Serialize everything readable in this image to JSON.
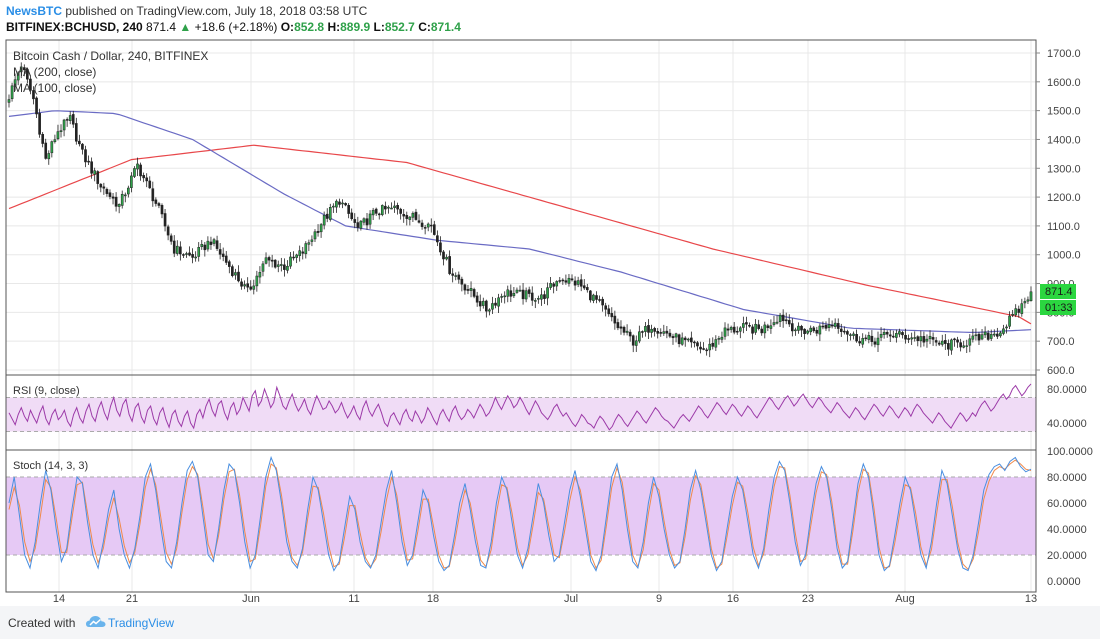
{
  "header": {
    "brand": "NewsBTC",
    "published_text": "published on TradingView.com, July 18, 2018 03:58 UTC",
    "symbol": "BITFINEX:BCHUSD, 240",
    "last": "871.4",
    "change": "+18.6 (+2.18%)",
    "o_label": "O:",
    "o_value": "852.8",
    "h_label": "H:",
    "h_value": "889.9",
    "l_label": "L:",
    "l_value": "852.7",
    "c_label": "C:",
    "c_value": "871.4"
  },
  "footer": {
    "created_with": "Created with",
    "platform": "TradingView"
  },
  "colors": {
    "up": "#2fa14a",
    "down": "#222222",
    "ma200": "#e8474a",
    "ma100": "#6a6bc4",
    "rsi": "#9c3aa8",
    "stoch_k": "#4a8fe0",
    "stoch_d": "#f08a4b",
    "rsi_band": "#f0dcf6",
    "stoch_band": "#e6c9f5",
    "grid": "#e8e8e8"
  },
  "chart_data": [
    {
      "type": "candlestick",
      "title": "Bitcoin Cash / Dollar, 240, BITFINEX",
      "legend": [
        "MA (200, close)",
        "MA (100, close)"
      ],
      "x_tick_labels": [
        "14",
        "21",
        "Jun",
        "11",
        "18",
        "Jul",
        "9",
        "16",
        "23",
        "Aug",
        "13"
      ],
      "y_tick_labels": [
        "1700.0",
        "1600.0",
        "1500.0",
        "1400.0",
        "1300.0",
        "1200.0",
        "1100.0",
        "1000.0",
        "900.0",
        "800.0",
        "700.0",
        "600.0"
      ],
      "ylim": [
        600,
        1700
      ],
      "last_price_label": "871.4",
      "countdown_label": "01:33",
      "price_anchors": [
        [
          0,
          1550
        ],
        [
          4,
          1660
        ],
        [
          8,
          1540
        ],
        [
          12,
          1330
        ],
        [
          16,
          1430
        ],
        [
          20,
          1470
        ],
        [
          24,
          1350
        ],
        [
          30,
          1240
        ],
        [
          36,
          1170
        ],
        [
          42,
          1310
        ],
        [
          48,
          1180
        ],
        [
          54,
          1020
        ],
        [
          60,
          990
        ],
        [
          66,
          1050
        ],
        [
          72,
          960
        ],
        [
          78,
          870
        ],
        [
          84,
          980
        ],
        [
          90,
          960
        ],
        [
          96,
          1010
        ],
        [
          102,
          1110
        ],
        [
          108,
          1190
        ],
        [
          114,
          1090
        ],
        [
          120,
          1150
        ],
        [
          126,
          1160
        ],
        [
          132,
          1130
        ],
        [
          138,
          1100
        ],
        [
          144,
          950
        ],
        [
          150,
          880
        ],
        [
          156,
          810
        ],
        [
          162,
          870
        ],
        [
          168,
          860
        ],
        [
          174,
          850
        ],
        [
          180,
          920
        ],
        [
          186,
          900
        ],
        [
          192,
          840
        ],
        [
          198,
          760
        ],
        [
          204,
          700
        ],
        [
          210,
          755
        ],
        [
          216,
          720
        ],
        [
          222,
          690
        ],
        [
          228,
          670
        ],
        [
          234,
          735
        ],
        [
          240,
          745
        ],
        [
          246,
          740
        ],
        [
          252,
          790
        ],
        [
          258,
          735
        ],
        [
          264,
          740
        ],
        [
          270,
          765
        ],
        [
          276,
          715
        ],
        [
          282,
          700
        ],
        [
          288,
          725
        ],
        [
          294,
          715
        ],
        [
          300,
          705
        ],
        [
          306,
          685
        ],
        [
          312,
          695
        ],
        [
          318,
          712
        ],
        [
          324,
          735
        ],
        [
          330,
          808
        ],
        [
          334,
          871
        ]
      ],
      "ma200_anchors": [
        [
          0,
          1160
        ],
        [
          40,
          1330
        ],
        [
          80,
          1380
        ],
        [
          130,
          1320
        ],
        [
          180,
          1170
        ],
        [
          230,
          1020
        ],
        [
          280,
          895
        ],
        [
          330,
          785
        ],
        [
          334,
          760
        ]
      ],
      "ma100_anchors": [
        [
          0,
          1480
        ],
        [
          15,
          1500
        ],
        [
          35,
          1490
        ],
        [
          60,
          1400
        ],
        [
          90,
          1210
        ],
        [
          110,
          1100
        ],
        [
          140,
          1050
        ],
        [
          170,
          1020
        ],
        [
          200,
          940
        ],
        [
          240,
          810
        ],
        [
          275,
          745
        ],
        [
          315,
          730
        ],
        [
          334,
          740
        ]
      ],
      "series": [
        {
          "name": "MA (200, close)"
        },
        {
          "name": "MA (100, close)"
        }
      ]
    },
    {
      "type": "line",
      "title": "RSI (9, close)",
      "y_tick_labels": [
        "80.0000",
        "40.0000"
      ],
      "ylim": [
        15,
        90
      ],
      "bands": [
        30,
        70
      ],
      "values": [
        52,
        45,
        38,
        50,
        58,
        48,
        42,
        55,
        47,
        40,
        52,
        60,
        45,
        38,
        50,
        56,
        44,
        48,
        55,
        42,
        36,
        50,
        58,
        46,
        40,
        54,
        62,
        48,
        42,
        57,
        65,
        52,
        44,
        60,
        70,
        55,
        48,
        62,
        68,
        50,
        42,
        58,
        63,
        47,
        40,
        55,
        60,
        45,
        38,
        52,
        58,
        44,
        35,
        50,
        55,
        42,
        36,
        48,
        54,
        40,
        34,
        50,
        56,
        46,
        60,
        68,
        55,
        48,
        62,
        66,
        52,
        44,
        58,
        64,
        50,
        56,
        70,
        62,
        54,
        72,
        78,
        60,
        66,
        80,
        70,
        58,
        64,
        82,
        72,
        60,
        56,
        66,
        74,
        62,
        54,
        60,
        68,
        56,
        50,
        62,
        72,
        64,
        56,
        58,
        66,
        60,
        52,
        56,
        64,
        54,
        46,
        52,
        60,
        50,
        44,
        58,
        66,
        54,
        48,
        56,
        62,
        52,
        40,
        36,
        48,
        52,
        44,
        38,
        50,
        56,
        46,
        42,
        54,
        48,
        40,
        46,
        58,
        52,
        44,
        38,
        50,
        56,
        48,
        42,
        54,
        60,
        50,
        44,
        48,
        56,
        52,
        46,
        54,
        62,
        56,
        48,
        52,
        60,
        70,
        62,
        56,
        64,
        72,
        66,
        58,
        62,
        70,
        64,
        56,
        50,
        58,
        66,
        60,
        52,
        48,
        44,
        50,
        58,
        62,
        54,
        48,
        52,
        46,
        40,
        36,
        42,
        50,
        46,
        40,
        38,
        34,
        42,
        48,
        44,
        38,
        32,
        36,
        44,
        50,
        46,
        40,
        36,
        42,
        48,
        54,
        50,
        44,
        40,
        46,
        52,
        58,
        54,
        48,
        44,
        42,
        38,
        34,
        40,
        46,
        50,
        46,
        42,
        48,
        54,
        60,
        56,
        50,
        46,
        52,
        58,
        64,
        60,
        54,
        50,
        56,
        62,
        58,
        52,
        48,
        54,
        60,
        56,
        50,
        46,
        52,
        58,
        64,
        70,
        66,
        60,
        56,
        62,
        68,
        72,
        66,
        60,
        64,
        70,
        74,
        68,
        62,
        58,
        64,
        70,
        66,
        60,
        56,
        52,
        58,
        64,
        60,
        54,
        50,
        46,
        52,
        58,
        54,
        48,
        44,
        50,
        56,
        62,
        58,
        52,
        48,
        54,
        60,
        56,
        50,
        46,
        52,
        58,
        54,
        48,
        56,
        62,
        58,
        52,
        48,
        44,
        40,
        46,
        52,
        48,
        42,
        38,
        34,
        40,
        46,
        52,
        48,
        42,
        46,
        52,
        48,
        56,
        62,
        66,
        60,
        54,
        58,
        64,
        70,
        74,
        68,
        72,
        80,
        84,
        78,
        72,
        76,
        82,
        86
      ]
    },
    {
      "type": "line",
      "title": "Stoch (14, 3, 3)",
      "y_tick_labels": [
        "100.0000",
        "80.0000",
        "60.0000",
        "40.0000",
        "20.0000",
        "0.0000"
      ],
      "ylim": [
        0,
        100
      ],
      "bands": [
        20,
        80
      ],
      "series": [
        {
          "name": "%K",
          "values": [
            60,
            80,
            50,
            20,
            10,
            30,
            60,
            85,
            70,
            40,
            15,
            25,
            55,
            80,
            75,
            45,
            20,
            10,
            30,
            55,
            70,
            40,
            20,
            10,
            25,
            50,
            80,
            90,
            70,
            40,
            15,
            10,
            30,
            60,
            85,
            92,
            80,
            50,
            20,
            15,
            40,
            70,
            90,
            85,
            60,
            30,
            10,
            20,
            50,
            80,
            95,
            85,
            60,
            30,
            15,
            10,
            25,
            55,
            80,
            70,
            45,
            20,
            8,
            15,
            40,
            65,
            55,
            30,
            15,
            10,
            20,
            45,
            70,
            85,
            60,
            30,
            12,
            20,
            45,
            70,
            60,
            35,
            15,
            8,
            12,
            35,
            60,
            75,
            55,
            30,
            12,
            10,
            30,
            60,
            80,
            70,
            45,
            20,
            10,
            25,
            50,
            75,
            60,
            35,
            15,
            20,
            45,
            70,
            85,
            65,
            40,
            15,
            8,
            20,
            50,
            80,
            90,
            70,
            40,
            15,
            10,
            30,
            60,
            80,
            65,
            40,
            20,
            10,
            15,
            40,
            70,
            85,
            70,
            45,
            20,
            8,
            15,
            40,
            65,
            80,
            70,
            45,
            20,
            10,
            25,
            55,
            80,
            92,
            85,
            60,
            30,
            12,
            20,
            50,
            75,
            88,
            80,
            55,
            25,
            10,
            15,
            45,
            75,
            90,
            80,
            50,
            20,
            8,
            12,
            35,
            60,
            80,
            70,
            45,
            20,
            10,
            30,
            60,
            85,
            75,
            50,
            25,
            10,
            8,
            20,
            45,
            70,
            82,
            88,
            90,
            85,
            92,
            95,
            88,
            84,
            86
          ]
        },
        {
          "name": "%D",
          "values": [
            55,
            72,
            58,
            30,
            15,
            25,
            50,
            78,
            72,
            48,
            22,
            22,
            48,
            74,
            76,
            52,
            28,
            14,
            25,
            48,
            64,
            48,
            27,
            14,
            22,
            44,
            72,
            86,
            74,
            48,
            22,
            13,
            25,
            53,
            78,
            88,
            82,
            57,
            28,
            17,
            35,
            63,
            84,
            86,
            66,
            38,
            15,
            17,
            43,
            73,
            90,
            87,
            66,
            37,
            18,
            12,
            22,
            48,
            73,
            72,
            52,
            27,
            11,
            13,
            33,
            58,
            58,
            37,
            18,
            11,
            17,
            38,
            62,
            80,
            66,
            38,
            16,
            17,
            38,
            63,
            63,
            42,
            20,
            10,
            11,
            29,
            52,
            70,
            60,
            37,
            16,
            11,
            24,
            52,
            74,
            72,
            52,
            26,
            12,
            20,
            43,
            68,
            63,
            42,
            20,
            18,
            38,
            62,
            80,
            70,
            47,
            20,
            10,
            16,
            43,
            72,
            87,
            76,
            48,
            20,
            11,
            24,
            52,
            75,
            70,
            46,
            24,
            12,
            14,
            34,
            62,
            81,
            74,
            51,
            25,
            10,
            13,
            34,
            58,
            76,
            73,
            52,
            26,
            12,
            21,
            47,
            73,
            88,
            87,
            66,
            37,
            15,
            17,
            43,
            68,
            84,
            82,
            61,
            31,
            13,
            13,
            38,
            68,
            86,
            83,
            57,
            26,
            10,
            11,
            29,
            53,
            74,
            72,
            52,
            26,
            12,
            24,
            52,
            78,
            78,
            57,
            30,
            13,
            9,
            17,
            38,
            63,
            77,
            85,
            88,
            86,
            90,
            93,
            90,
            86,
            85
          ]
        }
      ]
    }
  ]
}
